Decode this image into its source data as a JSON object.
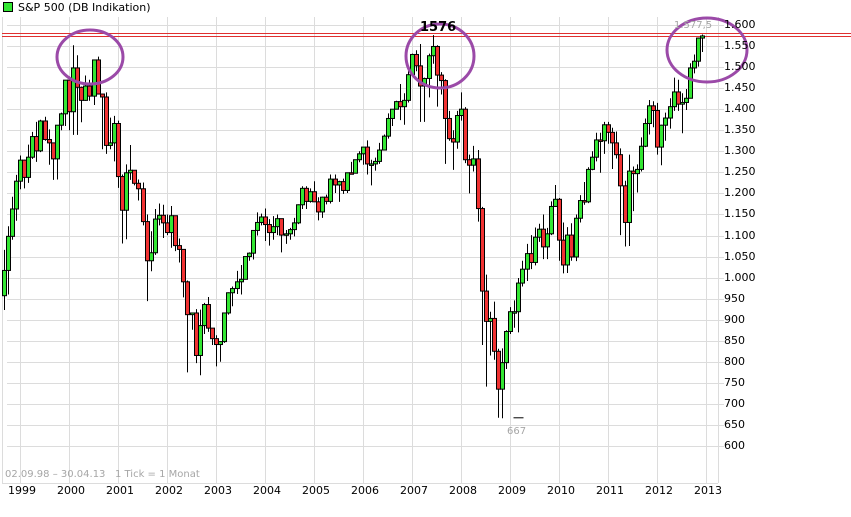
{
  "legend": {
    "label": "S&P 500 (DB Indikation)",
    "swatch_color": "#33e633"
  },
  "footer": {
    "range": "02.09.98 – 30.04.13",
    "tick_info": "1 Tick = 1 Monat"
  },
  "colors": {
    "up": "#33e633",
    "down": "#f03232",
    "grid": "#dcdcdc",
    "hline": "#e03030",
    "circle": "#9b4aa8",
    "annotation_gray": "#a6a6a6"
  },
  "annotations": {
    "peak_2007": "1576",
    "low_2009": "667",
    "last_high": "1.577,5"
  },
  "chart_data": {
    "type": "candlestick",
    "title": "S&P 500 (DB Indikation)",
    "xlabel": "",
    "ylabel": "",
    "ylim": [
      580,
      1620
    ],
    "y_ticks": [
      "1.600",
      "1.550",
      "1.500",
      "1.450",
      "1.400",
      "1.350",
      "1.300",
      "1.250",
      "1.200",
      "1.150",
      "1.100",
      "1.050",
      "1.000",
      "950",
      "900",
      "850",
      "800",
      "750",
      "700",
      "650",
      "600"
    ],
    "x_ticks": [
      "1999",
      "2000",
      "2001",
      "2002",
      "2003",
      "2004",
      "2005",
      "2006",
      "2007",
      "2008",
      "2009",
      "2010",
      "2011",
      "2012",
      "2013"
    ],
    "period": "monthly",
    "start": "1998-09",
    "horizontal_line": 1576,
    "highlight_circles": [
      "2000 peak",
      "2007 peak",
      "2013 high"
    ],
    "ohlc": [
      [
        957,
        1066,
        923,
        1017
      ],
      [
        1017,
        1122,
        960,
        1098
      ],
      [
        1098,
        1192,
        1090,
        1163
      ],
      [
        1163,
        1244,
        1135,
        1229
      ],
      [
        1229,
        1290,
        1210,
        1279
      ],
      [
        1279,
        1280,
        1212,
        1238
      ],
      [
        1238,
        1316,
        1225,
        1286
      ],
      [
        1286,
        1346,
        1282,
        1335
      ],
      [
        1335,
        1370,
        1275,
        1301
      ],
      [
        1301,
        1375,
        1298,
        1372
      ],
      [
        1372,
        1382,
        1325,
        1328
      ],
      [
        1328,
        1352,
        1268,
        1320
      ],
      [
        1320,
        1312,
        1232,
        1282
      ],
      [
        1282,
        1325,
        1233,
        1362
      ],
      [
        1362,
        1392,
        1350,
        1389
      ],
      [
        1389,
        1420,
        1360,
        1469
      ],
      [
        1469,
        1478,
        1350,
        1394
      ],
      [
        1394,
        1552,
        1339,
        1498
      ],
      [
        1498,
        1528,
        1339,
        1452
      ],
      [
        1452,
        1454,
        1369,
        1421
      ],
      [
        1421,
        1480,
        1420,
        1455
      ],
      [
        1455,
        1470,
        1420,
        1431
      ],
      [
        1431,
        1517,
        1410,
        1517
      ],
      [
        1517,
        1525,
        1455,
        1436
      ],
      [
        1436,
        1437,
        1305,
        1429
      ],
      [
        1429,
        1440,
        1294,
        1314
      ],
      [
        1314,
        1380,
        1305,
        1320
      ],
      [
        1320,
        1384,
        1276,
        1366
      ],
      [
        1366,
        1373,
        1213,
        1240
      ],
      [
        1240,
        1245,
        1081,
        1160
      ],
      [
        1160,
        1269,
        1091,
        1249
      ],
      [
        1249,
        1315,
        1232,
        1255
      ],
      [
        1255,
        1253,
        1219,
        1224
      ],
      [
        1224,
        1233,
        1183,
        1211
      ],
      [
        1211,
        1226,
        1124,
        1133
      ],
      [
        1133,
        1150,
        944,
        1040
      ],
      [
        1040,
        1110,
        1015,
        1059
      ],
      [
        1059,
        1163,
        1054,
        1139
      ],
      [
        1139,
        1176,
        1124,
        1148
      ],
      [
        1148,
        1173,
        1094,
        1130
      ],
      [
        1130,
        1150,
        1101,
        1107
      ],
      [
        1107,
        1170,
        1071,
        1147
      ],
      [
        1147,
        1147,
        1063,
        1076
      ],
      [
        1076,
        1093,
        1036,
        1067
      ],
      [
        1067,
        1068,
        953,
        990
      ],
      [
        990,
        993,
        775,
        912
      ],
      [
        912,
        917,
        876,
        916
      ],
      [
        916,
        925,
        797,
        815
      ],
      [
        815,
        924,
        768,
        886
      ],
      [
        886,
        940,
        866,
        936
      ],
      [
        936,
        954,
        871,
        880
      ],
      [
        880,
        880,
        840,
        855
      ],
      [
        855,
        863,
        789,
        841
      ],
      [
        841,
        847,
        800,
        848
      ],
      [
        848,
        893,
        845,
        916
      ],
      [
        916,
        965,
        912,
        964
      ],
      [
        964,
        979,
        932,
        974
      ],
      [
        974,
        1016,
        961,
        990
      ],
      [
        990,
        1030,
        960,
        996
      ],
      [
        996,
        1040,
        996,
        1050
      ],
      [
        1050,
        1060,
        1040,
        1058
      ],
      [
        1058,
        1112,
        1043,
        1112
      ],
      [
        1112,
        1155,
        1100,
        1131
      ],
      [
        1131,
        1152,
        1124,
        1144
      ],
      [
        1144,
        1164,
        1087,
        1126
      ],
      [
        1126,
        1139,
        1076,
        1107
      ],
      [
        1107,
        1146,
        1090,
        1121
      ],
      [
        1121,
        1150,
        1101,
        1140
      ],
      [
        1140,
        1140,
        1060,
        1101
      ],
      [
        1101,
        1113,
        1080,
        1104
      ],
      [
        1104,
        1118,
        1090,
        1114
      ],
      [
        1114,
        1142,
        1098,
        1130
      ],
      [
        1130,
        1174,
        1127,
        1173
      ],
      [
        1173,
        1217,
        1163,
        1212
      ],
      [
        1212,
        1217,
        1163,
        1181
      ],
      [
        1181,
        1212,
        1178,
        1204
      ],
      [
        1204,
        1229,
        1180,
        1180
      ],
      [
        1180,
        1191,
        1136,
        1156
      ],
      [
        1156,
        1192,
        1142,
        1191
      ],
      [
        1191,
        1197,
        1174,
        1181
      ],
      [
        1181,
        1245,
        1176,
        1234
      ],
      [
        1234,
        1245,
        1201,
        1220
      ],
      [
        1220,
        1230,
        1180,
        1228
      ],
      [
        1228,
        1235,
        1199,
        1207
      ],
      [
        1207,
        1249,
        1201,
        1249
      ],
      [
        1249,
        1275,
        1245,
        1248
      ],
      [
        1248,
        1280,
        1250,
        1280
      ],
      [
        1280,
        1300,
        1274,
        1294
      ],
      [
        1294,
        1297,
        1268,
        1310
      ],
      [
        1310,
        1326,
        1245,
        1270
      ],
      [
        1270,
        1280,
        1219,
        1270
      ],
      [
        1270,
        1285,
        1254,
        1276
      ],
      [
        1276,
        1320,
        1270,
        1303
      ],
      [
        1303,
        1340,
        1307,
        1336
      ],
      [
        1336,
        1390,
        1330,
        1378
      ],
      [
        1378,
        1390,
        1360,
        1400
      ],
      [
        1400,
        1420,
        1400,
        1418
      ],
      [
        1418,
        1460,
        1374,
        1406
      ],
      [
        1406,
        1438,
        1363,
        1421
      ],
      [
        1421,
        1500,
        1416,
        1482
      ],
      [
        1482,
        1532,
        1480,
        1530
      ],
      [
        1530,
        1540,
        1490,
        1503
      ],
      [
        1503,
        1555,
        1370,
        1455
      ],
      [
        1455,
        1475,
        1370,
        1473
      ],
      [
        1473,
        1532,
        1428,
        1527
      ],
      [
        1527,
        1576,
        1508,
        1549
      ],
      [
        1549,
        1552,
        1406,
        1481
      ],
      [
        1481,
        1488,
        1435,
        1468
      ],
      [
        1468,
        1471,
        1270,
        1378
      ],
      [
        1378,
        1396,
        1325,
        1330
      ],
      [
        1330,
        1350,
        1256,
        1322
      ],
      [
        1322,
        1396,
        1306,
        1385
      ],
      [
        1385,
        1440,
        1373,
        1400
      ],
      [
        1400,
        1405,
        1272,
        1280
      ],
      [
        1280,
        1292,
        1200,
        1267
      ],
      [
        1267,
        1313,
        1252,
        1282
      ],
      [
        1282,
        1303,
        1133,
        1164
      ],
      [
        1164,
        1168,
        840,
        968
      ],
      [
        968,
        1007,
        741,
        896
      ],
      [
        896,
        919,
        815,
        903
      ],
      [
        903,
        943,
        805,
        825
      ],
      [
        825,
        831,
        667,
        735
      ],
      [
        735,
        832,
        666,
        798
      ],
      [
        798,
        875,
        783,
        872
      ],
      [
        872,
        930,
        866,
        919
      ],
      [
        919,
        946,
        881,
        919
      ],
      [
        919,
        999,
        870,
        987
      ],
      [
        987,
        1040,
        979,
        1020
      ],
      [
        1020,
        1080,
        992,
        1057
      ],
      [
        1057,
        1101,
        1020,
        1036
      ],
      [
        1036,
        1119,
        1029,
        1096
      ],
      [
        1096,
        1128,
        1085,
        1115
      ],
      [
        1115,
        1150,
        1044,
        1073
      ],
      [
        1073,
        1118,
        1044,
        1104
      ],
      [
        1104,
        1181,
        1101,
        1169
      ],
      [
        1169,
        1220,
        1168,
        1186
      ],
      [
        1186,
        1189,
        1040,
        1089
      ],
      [
        1089,
        1131,
        1010,
        1030
      ],
      [
        1030,
        1120,
        1011,
        1101
      ],
      [
        1101,
        1129,
        1040,
        1049
      ],
      [
        1049,
        1150,
        1039,
        1141
      ],
      [
        1141,
        1196,
        1131,
        1183
      ],
      [
        1183,
        1227,
        1173,
        1180
      ],
      [
        1180,
        1262,
        1177,
        1257
      ],
      [
        1257,
        1300,
        1255,
        1286
      ],
      [
        1286,
        1344,
        1276,
        1327
      ],
      [
        1327,
        1344,
        1249,
        1325
      ],
      [
        1325,
        1370,
        1294,
        1363
      ],
      [
        1363,
        1370,
        1318,
        1345
      ],
      [
        1345,
        1356,
        1258,
        1320
      ],
      [
        1320,
        1347,
        1283,
        1292
      ],
      [
        1292,
        1307,
        1101,
        1218
      ],
      [
        1218,
        1230,
        1074,
        1131
      ],
      [
        1131,
        1292,
        1075,
        1253
      ],
      [
        1253,
        1264,
        1158,
        1247
      ],
      [
        1247,
        1269,
        1202,
        1257
      ],
      [
        1257,
        1333,
        1252,
        1312
      ],
      [
        1312,
        1378,
        1310,
        1366
      ],
      [
        1366,
        1422,
        1340,
        1408
      ],
      [
        1408,
        1419,
        1357,
        1397
      ],
      [
        1397,
        1415,
        1292,
        1310
      ],
      [
        1310,
        1363,
        1267,
        1362
      ],
      [
        1362,
        1392,
        1325,
        1379
      ],
      [
        1379,
        1426,
        1354,
        1406
      ],
      [
        1406,
        1475,
        1396,
        1441
      ],
      [
        1441,
        1470,
        1396,
        1412
      ],
      [
        1412,
        1438,
        1343,
        1416
      ],
      [
        1416,
        1448,
        1398,
        1426
      ],
      [
        1426,
        1509,
        1426,
        1498
      ],
      [
        1498,
        1530,
        1485,
        1514
      ],
      [
        1514,
        1570,
        1501,
        1569
      ],
      [
        1569,
        1577.5,
        1536,
        1574
      ]
    ]
  }
}
